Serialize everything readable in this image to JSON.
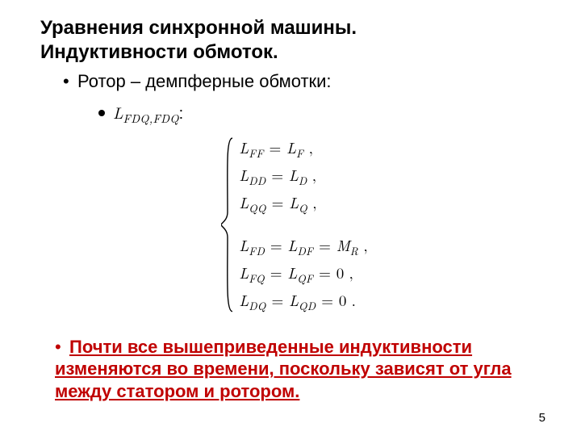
{
  "title_line1": "Уравнения синхронной машины.",
  "title_line2": "Индуктивности обмоток.",
  "bullet1": "Ротор – демпферные обмотки:",
  "sub_label_prefix": "L",
  "sub_label_sub": "FDQ,FDQ",
  "sub_label_colon": ":",
  "equations": {
    "g1": [
      {
        "lhs_sub": "FF",
        "rhs": "L",
        "rhs_sub": "F",
        "tail": "  ,"
      },
      {
        "lhs_sub": "DD",
        "rhs": "L",
        "rhs_sub": "D",
        "tail": "  ,"
      },
      {
        "lhs_sub": "QQ",
        "rhs": "L",
        "rhs_sub": "Q",
        "tail": "  ,"
      }
    ],
    "g2": [
      {
        "pair_a": "FD",
        "pair_b": "DF",
        "rhs": "M",
        "rhs_sub": "R",
        "tail": "  ,"
      },
      {
        "pair_a": "FQ",
        "pair_b": "QF",
        "rhs_zero": "0",
        "tail": "  ,"
      },
      {
        "pair_a": "DQ",
        "pair_b": "QD",
        "rhs_zero": "0",
        "tail": "  ."
      }
    ]
  },
  "note": "Почти все вышеприведенные индуктивности изменяются во времени, поскольку зависят от угла между статором и ротором.",
  "page": "5",
  "colors": {
    "note": "#c00000",
    "text": "#000000",
    "bg": "#ffffff"
  }
}
